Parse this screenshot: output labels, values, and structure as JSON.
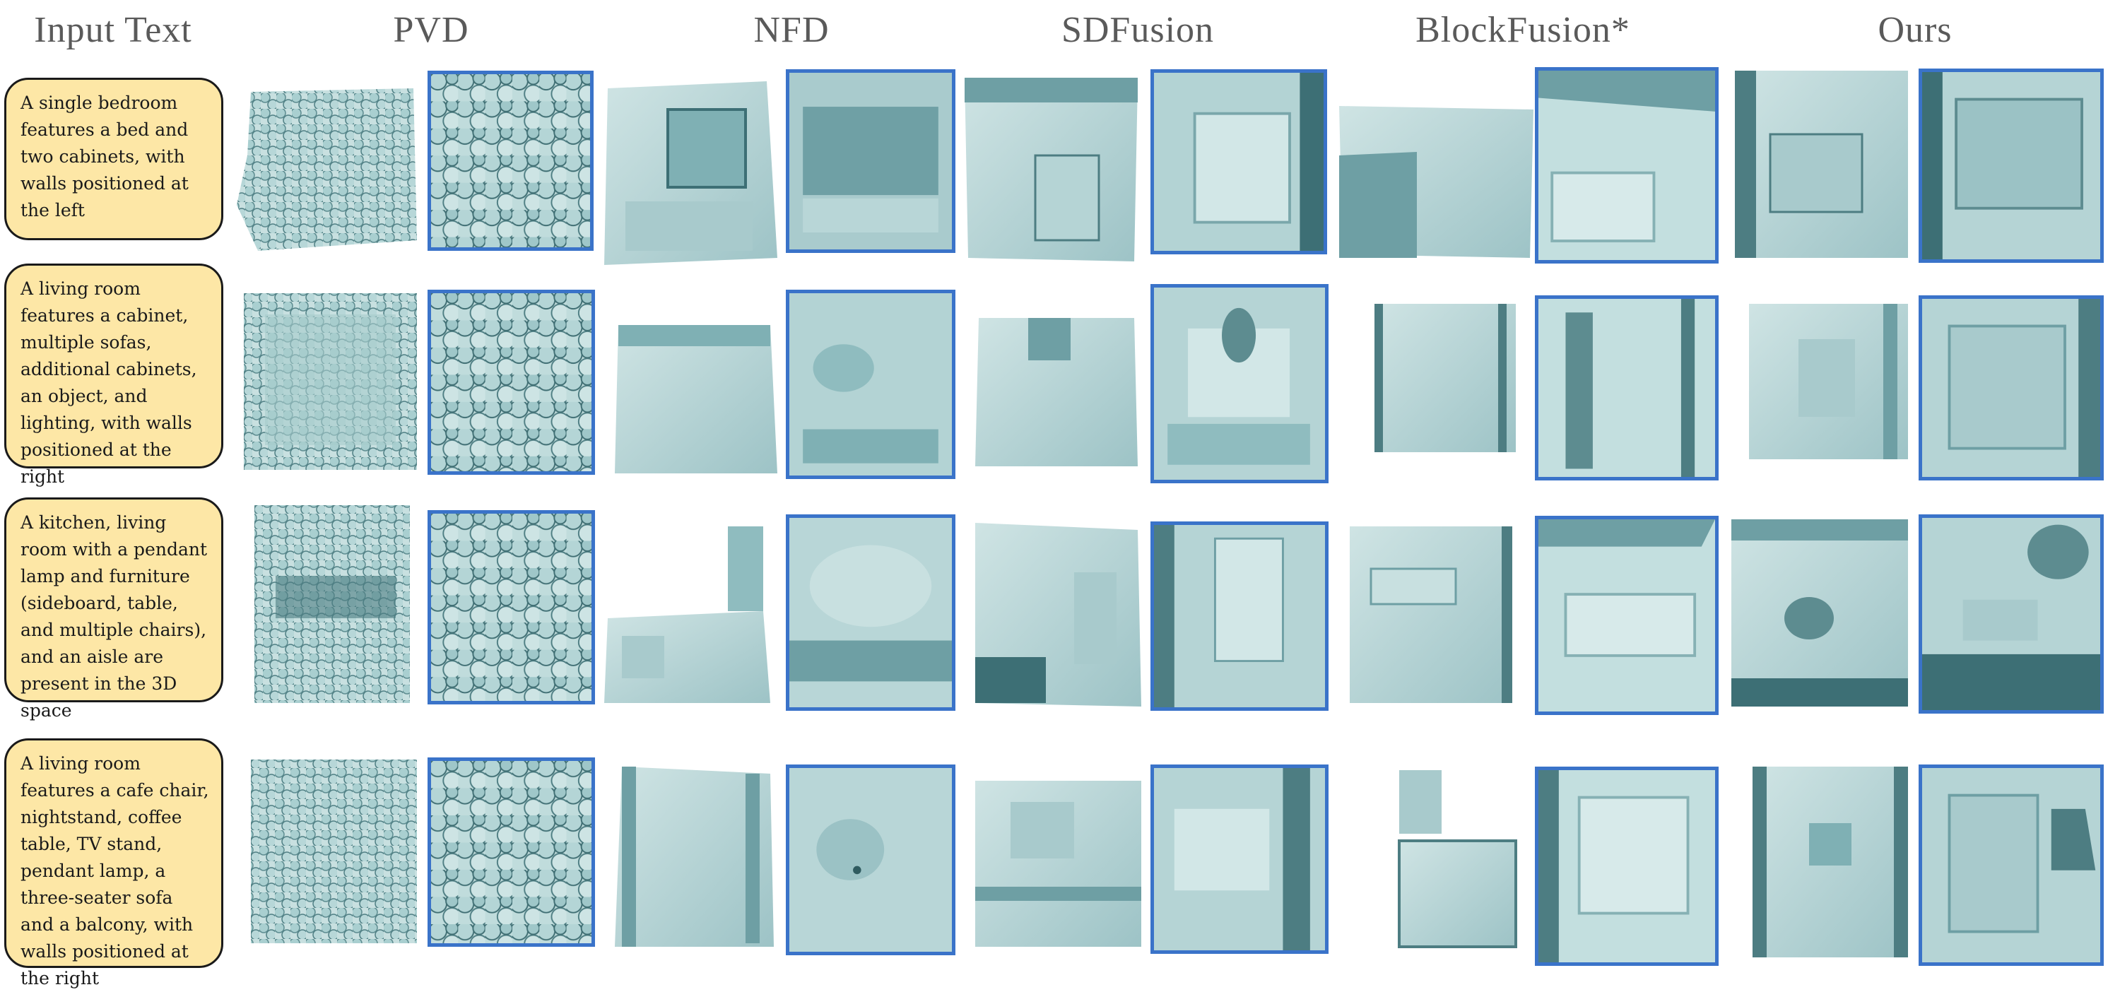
{
  "headers": {
    "input_text": "Input Text",
    "pvd": "PVD",
    "nfd": "NFD",
    "sdfusion": "SDFusion",
    "blockfusion": "BlockFusion*",
    "ours": "Ours"
  },
  "prompts": [
    "A single bedroom features a bed and two cabinets, with walls positioned at the left",
    "A living room features a cabinet, multiple sofas, additional cabinets, an object, and lighting, with walls positioned at the right",
    "A kitchen, living room with a pendant lamp and furniture (sideboard, table, and multiple chairs), and an aisle are present in the 3D space",
    "A living room features a cafe chair, nightstand, coffee table, TV stand, pendant lamp, a three-seater sofa and a balcony, with walls positioned at the right"
  ],
  "colors": {
    "mesh_light": "#bfdcdc",
    "mesh_mid": "#8fbcbf",
    "mesh_dark": "#3d6f75",
    "zoom_border": "#3a73c9",
    "prompt_fill": "#fde7a6",
    "prompt_border": "#1a1a1a",
    "header_text": "#5a5a5a"
  }
}
